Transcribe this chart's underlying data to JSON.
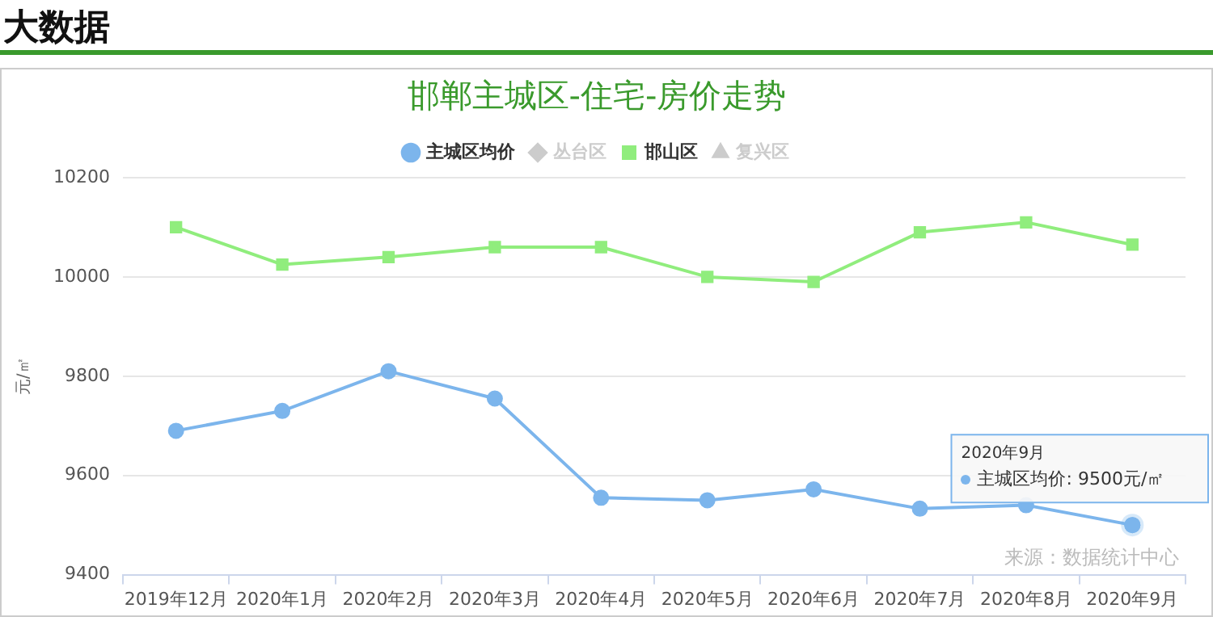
{
  "chart_data": {
    "type": "line",
    "title": "邯郸主城区-住宅-房价走势",
    "ylabel": "元/㎡",
    "categories": [
      "2019年12月",
      "2020年1月",
      "2020年2月",
      "2020年3月",
      "2020年4月",
      "2020年5月",
      "2020年6月",
      "2020年7月",
      "2020年8月",
      "2020年9月"
    ],
    "series": [
      {
        "name": "主城区均价",
        "color": "#7cb5ec",
        "marker": "circle",
        "values": [
          9690,
          9730,
          9810,
          9755,
          9555,
          9550,
          9572,
          9533,
          9540,
          9500
        ]
      },
      {
        "name": "丛台区",
        "color": "#cccccc",
        "marker": "diamond",
        "values": [
          null,
          null,
          null,
          null,
          null,
          null,
          null,
          null,
          null,
          null
        ]
      },
      {
        "name": "邯山区",
        "color": "#90ed7d",
        "marker": "square",
        "values": [
          10100,
          10025,
          10040,
          10060,
          10060,
          10000,
          9990,
          10090,
          10110,
          10065
        ]
      },
      {
        "name": "复兴区",
        "color": "#cccccc",
        "marker": "triangle",
        "values": [
          null,
          null,
          null,
          null,
          null,
          null,
          null,
          null,
          null,
          null
        ]
      }
    ],
    "ylim": [
      9400,
      10200
    ],
    "yticks": [
      9400,
      9600,
      9800,
      10000,
      10200
    ],
    "grid": "y",
    "legend": "top",
    "annotations": [
      "大数据",
      "2020年9月",
      "主城区均价: 9500元/㎡",
      "来源：数据统计中心"
    ]
  }
}
